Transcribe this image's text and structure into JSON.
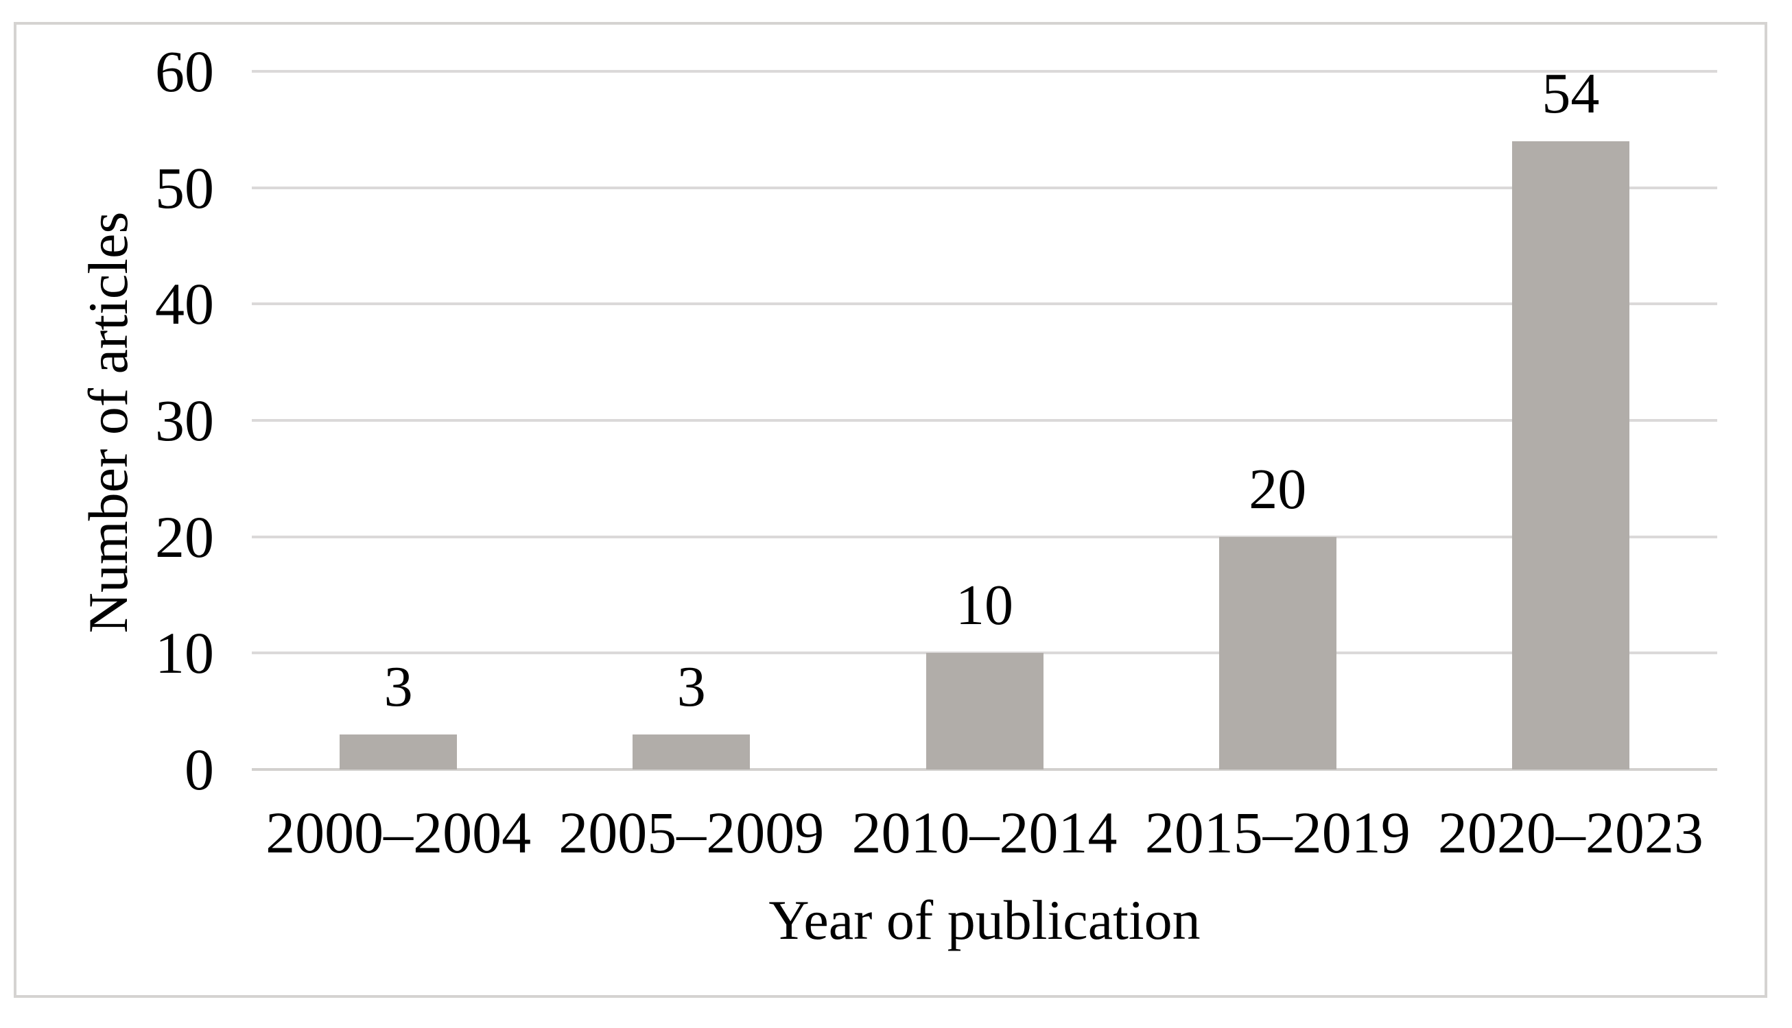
{
  "figure": {
    "background": "#ffffff",
    "frame_border_color": "#d5d3d1"
  },
  "chart_data": {
    "type": "bar",
    "title": "",
    "categories": [
      "2000–2004",
      "2005–2009",
      "2010–2014",
      "2015–2019",
      "2020–2023"
    ],
    "values": [
      3,
      3,
      10,
      20,
      54
    ],
    "data_labels": [
      "3",
      "3",
      "10",
      "20",
      "54"
    ],
    "xlabel": "Year of publication",
    "ylabel": "Number of articles",
    "ylim": [
      0,
      60
    ],
    "yticks": [
      0,
      10,
      20,
      30,
      40,
      50,
      60
    ],
    "ytick_labels": [
      "0",
      "10",
      "20",
      "30",
      "40",
      "50",
      "60"
    ],
    "grid": "horizontal",
    "legend": "none",
    "bar_color": "#b1ada9",
    "gridline_color": "#dbd9d9",
    "axis_line_color": "#d2d0ce",
    "text_color": "#000000"
  }
}
